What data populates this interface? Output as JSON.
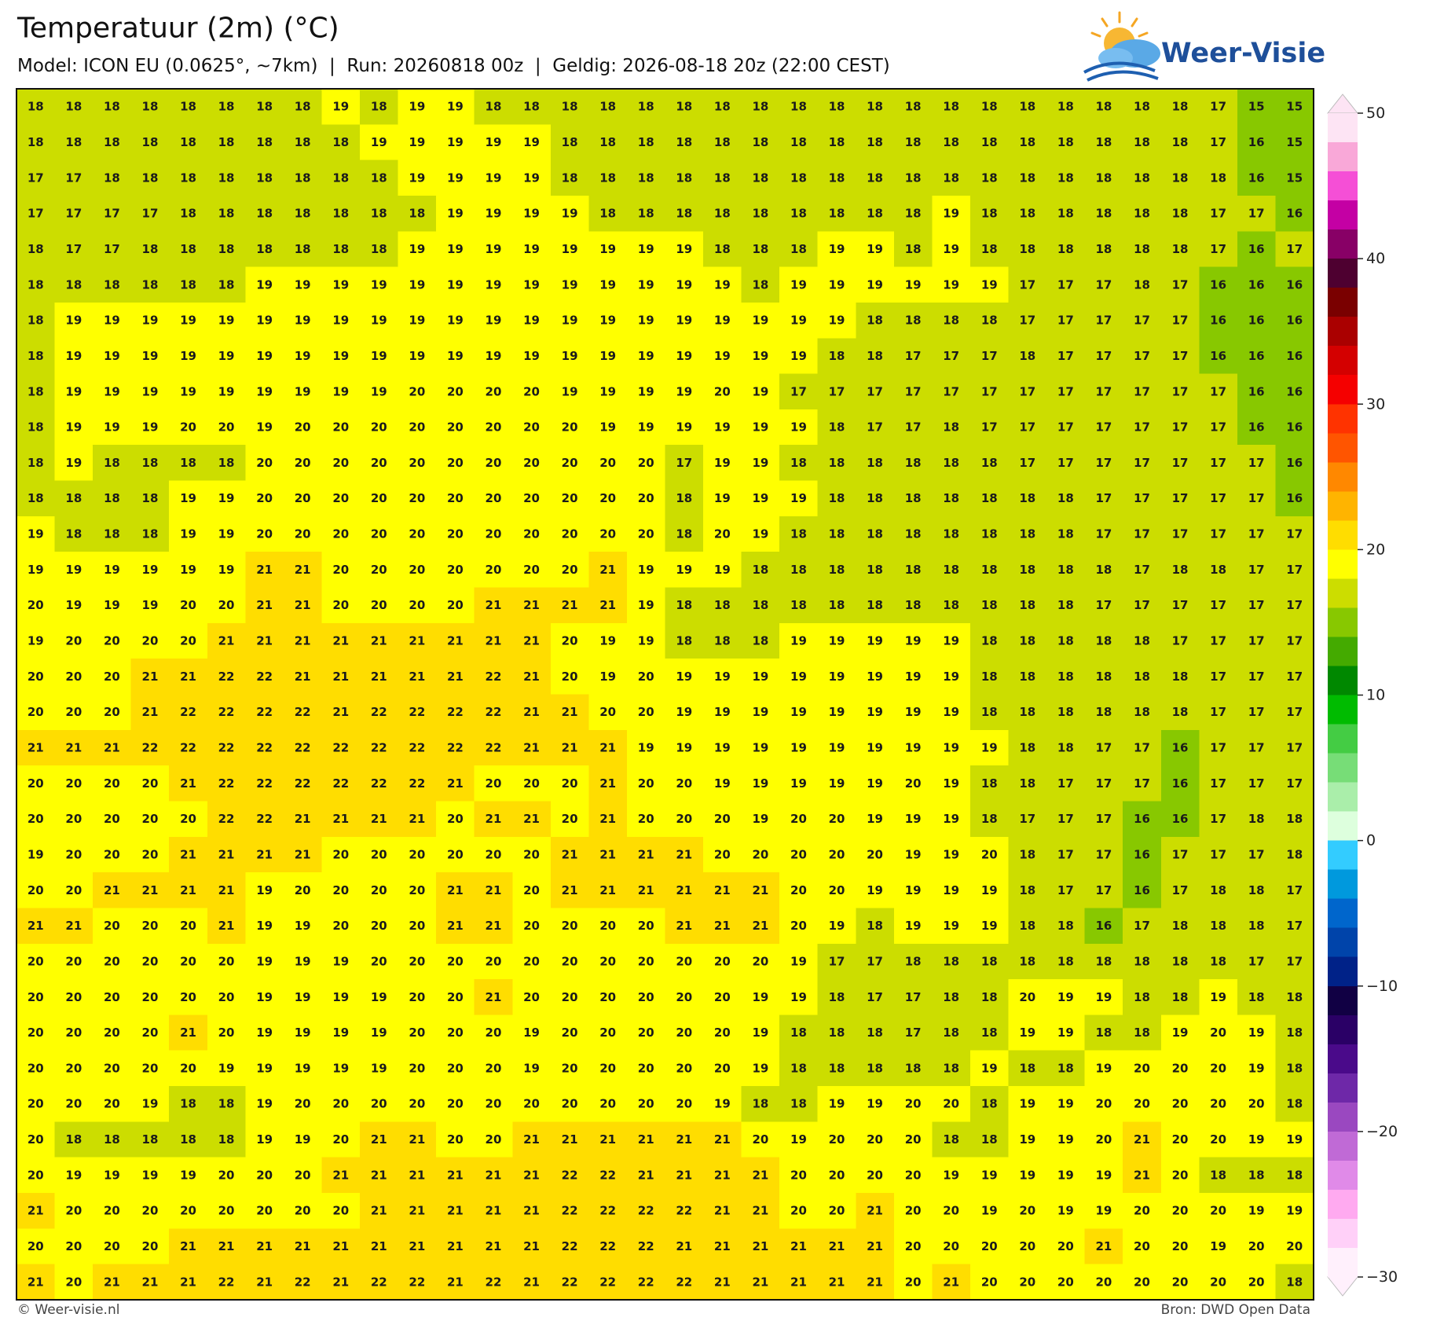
{
  "map": {
    "title": "Temperatuur (2m) (°C)",
    "subtitle": "Model: ICON EU (0.0625°, ~7km)  |  Run: 20260818 00z  |  Geldig: 2026-08-18 20z (22:00 CEST)",
    "logo": "Weer-Visie",
    "footer_left": "© Weer-visie.nl",
    "footer_right": "Bron: DWD Open Data",
    "grid": [
      [
        18,
        18,
        18,
        18,
        18,
        18,
        18,
        18,
        19,
        18,
        19,
        19,
        18,
        18,
        18,
        18,
        18,
        18,
        18,
        18,
        18,
        18,
        18,
        18,
        18,
        18,
        18,
        18,
        18,
        18,
        18,
        17,
        15,
        15
      ],
      [
        18,
        18,
        18,
        18,
        18,
        18,
        18,
        18,
        18,
        19,
        19,
        19,
        19,
        19,
        18,
        18,
        18,
        18,
        18,
        18,
        18,
        18,
        18,
        18,
        18,
        18,
        18,
        18,
        18,
        18,
        18,
        17,
        16,
        15
      ],
      [
        17,
        17,
        18,
        18,
        18,
        18,
        18,
        18,
        18,
        18,
        19,
        19,
        19,
        19,
        18,
        18,
        18,
        18,
        18,
        18,
        18,
        18,
        18,
        18,
        18,
        18,
        18,
        18,
        18,
        18,
        18,
        18,
        16,
        15
      ],
      [
        17,
        17,
        17,
        17,
        18,
        18,
        18,
        18,
        18,
        18,
        18,
        19,
        19,
        19,
        19,
        18,
        18,
        18,
        18,
        18,
        18,
        18,
        18,
        18,
        19,
        18,
        18,
        18,
        18,
        18,
        18,
        17,
        17,
        16
      ],
      [
        18,
        17,
        17,
        18,
        18,
        18,
        18,
        18,
        18,
        18,
        19,
        19,
        19,
        19,
        19,
        19,
        19,
        19,
        18,
        18,
        18,
        19,
        19,
        18,
        19,
        18,
        18,
        18,
        18,
        18,
        18,
        17,
        16,
        17
      ],
      [
        18,
        18,
        18,
        18,
        18,
        18,
        19,
        19,
        19,
        19,
        19,
        19,
        19,
        19,
        19,
        19,
        19,
        19,
        19,
        18,
        19,
        19,
        19,
        19,
        19,
        19,
        17,
        17,
        17,
        18,
        17,
        16,
        16,
        16
      ],
      [
        18,
        19,
        19,
        19,
        19,
        19,
        19,
        19,
        19,
        19,
        19,
        19,
        19,
        19,
        19,
        19,
        19,
        19,
        19,
        19,
        19,
        19,
        18,
        18,
        18,
        18,
        17,
        17,
        17,
        17,
        17,
        16,
        16,
        16
      ],
      [
        18,
        19,
        19,
        19,
        19,
        19,
        19,
        19,
        19,
        19,
        19,
        19,
        19,
        19,
        19,
        19,
        19,
        19,
        19,
        19,
        19,
        18,
        18,
        17,
        17,
        17,
        18,
        17,
        17,
        17,
        17,
        16,
        16,
        16
      ],
      [
        18,
        19,
        19,
        19,
        19,
        19,
        19,
        19,
        19,
        19,
        20,
        20,
        20,
        20,
        19,
        19,
        19,
        19,
        20,
        19,
        17,
        17,
        17,
        17,
        17,
        17,
        17,
        17,
        17,
        17,
        17,
        17,
        16,
        16
      ],
      [
        18,
        19,
        19,
        19,
        20,
        20,
        19,
        20,
        20,
        20,
        20,
        20,
        20,
        20,
        20,
        19,
        19,
        19,
        19,
        19,
        19,
        18,
        17,
        17,
        18,
        17,
        17,
        17,
        17,
        17,
        17,
        17,
        16,
        16
      ],
      [
        18,
        19,
        18,
        18,
        18,
        18,
        20,
        20,
        20,
        20,
        20,
        20,
        20,
        20,
        20,
        20,
        20,
        17,
        19,
        19,
        18,
        18,
        18,
        18,
        18,
        18,
        17,
        17,
        17,
        17,
        17,
        17,
        17,
        16
      ],
      [
        18,
        18,
        18,
        18,
        19,
        19,
        20,
        20,
        20,
        20,
        20,
        20,
        20,
        20,
        20,
        20,
        20,
        18,
        19,
        19,
        19,
        18,
        18,
        18,
        18,
        18,
        18,
        18,
        17,
        17,
        17,
        17,
        17,
        16
      ],
      [
        19,
        18,
        18,
        18,
        19,
        19,
        20,
        20,
        20,
        20,
        20,
        20,
        20,
        20,
        20,
        20,
        20,
        18,
        20,
        19,
        18,
        18,
        18,
        18,
        18,
        18,
        18,
        18,
        17,
        17,
        17,
        17,
        17,
        17
      ],
      [
        19,
        19,
        19,
        19,
        19,
        19,
        21,
        21,
        20,
        20,
        20,
        20,
        20,
        20,
        20,
        21,
        19,
        19,
        19,
        18,
        18,
        18,
        18,
        18,
        18,
        18,
        18,
        18,
        18,
        17,
        18,
        18,
        17,
        17
      ],
      [
        20,
        19,
        19,
        19,
        20,
        20,
        21,
        21,
        20,
        20,
        20,
        20,
        21,
        21,
        21,
        21,
        19,
        18,
        18,
        18,
        18,
        18,
        18,
        18,
        18,
        18,
        18,
        18,
        17,
        17,
        17,
        17,
        17,
        17
      ],
      [
        19,
        20,
        20,
        20,
        20,
        21,
        21,
        21,
        21,
        21,
        21,
        21,
        21,
        21,
        20,
        19,
        19,
        18,
        18,
        18,
        19,
        19,
        19,
        19,
        19,
        18,
        18,
        18,
        18,
        18,
        17,
        17,
        17,
        17
      ],
      [
        20,
        20,
        20,
        21,
        21,
        22,
        22,
        21,
        21,
        21,
        21,
        21,
        22,
        21,
        20,
        19,
        20,
        19,
        19,
        19,
        19,
        19,
        19,
        19,
        19,
        18,
        18,
        18,
        18,
        18,
        18,
        17,
        17,
        17
      ],
      [
        20,
        20,
        20,
        21,
        22,
        22,
        22,
        22,
        21,
        22,
        22,
        22,
        22,
        21,
        21,
        20,
        20,
        19,
        19,
        19,
        19,
        19,
        19,
        19,
        19,
        18,
        18,
        18,
        18,
        18,
        18,
        17,
        17,
        17
      ],
      [
        21,
        21,
        21,
        22,
        22,
        22,
        22,
        22,
        22,
        22,
        22,
        22,
        22,
        21,
        21,
        21,
        19,
        19,
        19,
        19,
        19,
        19,
        19,
        19,
        19,
        19,
        18,
        18,
        17,
        17,
        16,
        17,
        17,
        17
      ],
      [
        20,
        20,
        20,
        20,
        21,
        22,
        22,
        22,
        22,
        22,
        22,
        21,
        20,
        20,
        20,
        21,
        20,
        20,
        19,
        19,
        19,
        19,
        19,
        20,
        19,
        18,
        18,
        17,
        17,
        17,
        16,
        17,
        17,
        17
      ],
      [
        20,
        20,
        20,
        20,
        20,
        22,
        22,
        21,
        21,
        21,
        21,
        20,
        21,
        21,
        20,
        21,
        20,
        20,
        20,
        19,
        20,
        20,
        19,
        19,
        19,
        18,
        17,
        17,
        17,
        16,
        16,
        17,
        18,
        18
      ],
      [
        19,
        20,
        20,
        20,
        21,
        21,
        21,
        21,
        20,
        20,
        20,
        20,
        20,
        20,
        21,
        21,
        21,
        21,
        20,
        20,
        20,
        20,
        20,
        19,
        19,
        20,
        18,
        17,
        17,
        16,
        17,
        17,
        17,
        18
      ],
      [
        20,
        20,
        21,
        21,
        21,
        21,
        19,
        20,
        20,
        20,
        20,
        21,
        21,
        20,
        21,
        21,
        21,
        21,
        21,
        21,
        20,
        20,
        19,
        19,
        19,
        19,
        18,
        17,
        17,
        16,
        17,
        18,
        18,
        17
      ],
      [
        21,
        21,
        20,
        20,
        20,
        21,
        19,
        19,
        20,
        20,
        20,
        21,
        21,
        20,
        20,
        20,
        20,
        21,
        21,
        21,
        20,
        19,
        18,
        19,
        19,
        19,
        18,
        18,
        16,
        17,
        18,
        18,
        18,
        17
      ],
      [
        20,
        20,
        20,
        20,
        20,
        20,
        19,
        19,
        19,
        20,
        20,
        20,
        20,
        20,
        20,
        20,
        20,
        20,
        20,
        20,
        19,
        17,
        17,
        18,
        18,
        18,
        18,
        18,
        18,
        18,
        18,
        18,
        17,
        17
      ],
      [
        20,
        20,
        20,
        20,
        20,
        20,
        19,
        19,
        19,
        19,
        20,
        20,
        21,
        20,
        20,
        20,
        20,
        20,
        20,
        19,
        19,
        18,
        17,
        17,
        18,
        18,
        20,
        19,
        19,
        18,
        18,
        19,
        18,
        18
      ],
      [
        20,
        20,
        20,
        20,
        21,
        20,
        19,
        19,
        19,
        19,
        20,
        20,
        20,
        19,
        20,
        20,
        20,
        20,
        20,
        19,
        18,
        18,
        18,
        17,
        18,
        18,
        19,
        19,
        18,
        18,
        19,
        20,
        19,
        18
      ],
      [
        20,
        20,
        20,
        20,
        20,
        19,
        19,
        19,
        19,
        19,
        20,
        20,
        20,
        19,
        20,
        20,
        20,
        20,
        20,
        19,
        18,
        18,
        18,
        18,
        18,
        19,
        18,
        18,
        19,
        20,
        20,
        20,
        19,
        18
      ],
      [
        20,
        20,
        20,
        19,
        18,
        18,
        19,
        20,
        20,
        20,
        20,
        20,
        20,
        20,
        20,
        20,
        20,
        20,
        19,
        18,
        18,
        19,
        19,
        20,
        20,
        18,
        19,
        19,
        20,
        20,
        20,
        20,
        20,
        18
      ],
      [
        20,
        18,
        18,
        18,
        18,
        18,
        19,
        19,
        20,
        21,
        21,
        20,
        20,
        21,
        21,
        21,
        21,
        21,
        21,
        20,
        19,
        20,
        20,
        20,
        18,
        18,
        19,
        19,
        20,
        21,
        20,
        20,
        19,
        19
      ],
      [
        20,
        19,
        19,
        19,
        19,
        20,
        20,
        20,
        21,
        21,
        21,
        21,
        21,
        21,
        22,
        22,
        21,
        21,
        21,
        21,
        20,
        20,
        20,
        20,
        19,
        19,
        19,
        19,
        19,
        21,
        20,
        18,
        18,
        18
      ],
      [
        21,
        20,
        20,
        20,
        20,
        20,
        20,
        20,
        20,
        21,
        21,
        21,
        21,
        21,
        22,
        22,
        22,
        22,
        21,
        21,
        20,
        20,
        21,
        20,
        20,
        19,
        20,
        19,
        19,
        20,
        20,
        20,
        19,
        19
      ],
      [
        20,
        20,
        20,
        20,
        21,
        21,
        21,
        21,
        21,
        21,
        21,
        21,
        21,
        21,
        22,
        22,
        22,
        21,
        21,
        21,
        21,
        21,
        21,
        20,
        20,
        20,
        20,
        20,
        21,
        20,
        20,
        19,
        20,
        20
      ],
      [
        21,
        20,
        21,
        21,
        21,
        22,
        21,
        22,
        21,
        22,
        22,
        21,
        22,
        21,
        22,
        22,
        22,
        22,
        21,
        21,
        21,
        21,
        21,
        20,
        21,
        20,
        20,
        20,
        20,
        20,
        20,
        20,
        20,
        18
      ]
    ]
  },
  "colorbar": {
    "lim": [
      -30,
      50
    ],
    "ticks": [
      50,
      40,
      30,
      20,
      10,
      0,
      {
        "value": -10,
        "label": "−10"
      },
      {
        "value": -20,
        "label": "−20"
      },
      {
        "value": -30,
        "label": "−30"
      }
    ],
    "colors": [
      "#fde4f4",
      "#f9a8d8",
      "#f54fd6",
      "#c400a4",
      "#880066",
      "#4e0030",
      "#7a0000",
      "#aa0000",
      "#d40000",
      "#f50000",
      "#ff3300",
      "#ff5500",
      "#ff8800",
      "#ffb400",
      "#ffdd00",
      "#ffff00",
      "#ccdd00",
      "#88c800",
      "#44aa00",
      "#008800",
      "#00bb00",
      "#44cc44",
      "#77dd77",
      "#aaeeaa",
      "#ddffdd",
      "#33ccff",
      "#0099dd",
      "#0066cc",
      "#0044aa",
      "#002288",
      "#110044",
      "#2a0066",
      "#4a0a8a",
      "#6e28a8",
      "#9a48c0",
      "#c06ad6",
      "#e08ae8",
      "#ffaaf0",
      "#ffd0f8",
      "#fff0fc"
    ]
  }
}
